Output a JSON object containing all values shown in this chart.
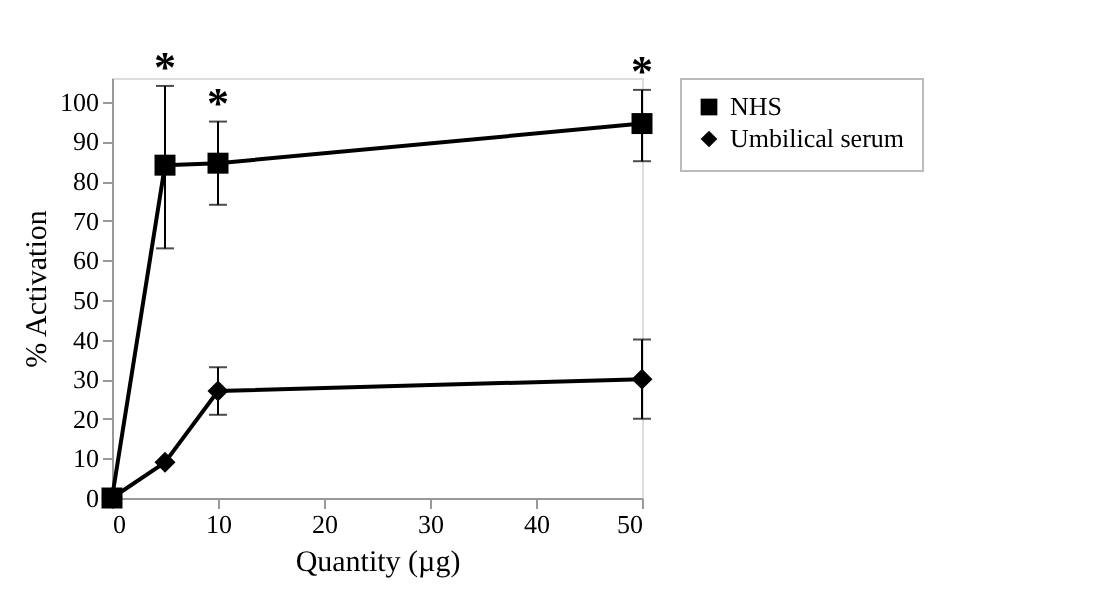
{
  "chart_data": {
    "type": "line",
    "xlabel": "Quantity (µg)",
    "ylabel": "% Activation",
    "x": [
      0,
      5,
      10,
      50
    ],
    "series": [
      {
        "name": "NHS",
        "color": "#000000",
        "marker": "square",
        "values": [
          0,
          84,
          84.5,
          94.5
        ],
        "errors": [
          null,
          [
            63,
            104
          ],
          [
            74,
            95
          ],
          [
            85,
            103
          ]
        ]
      },
      {
        "name": "Umbilical serum",
        "color": "#000000",
        "marker": "diamond",
        "values": [
          0,
          9,
          27,
          30
        ],
        "errors": [
          null,
          null,
          [
            21,
            33
          ],
          [
            20,
            40
          ]
        ]
      }
    ],
    "xlim": [
      0,
      50
    ],
    "xticks": [
      0,
      10,
      20,
      30,
      40,
      50
    ],
    "ylim": [
      0,
      106
    ],
    "yticks": [
      0,
      10,
      20,
      30,
      40,
      50,
      60,
      70,
      80,
      90,
      100
    ],
    "annotations": [
      {
        "text": "*",
        "x": 5,
        "y": 104
      },
      {
        "text": "*",
        "x": 10,
        "y": 95
      },
      {
        "text": "*",
        "x": 50,
        "y": 103
      }
    ],
    "grid": false,
    "legend": "right",
    "line_style": "solid"
  }
}
